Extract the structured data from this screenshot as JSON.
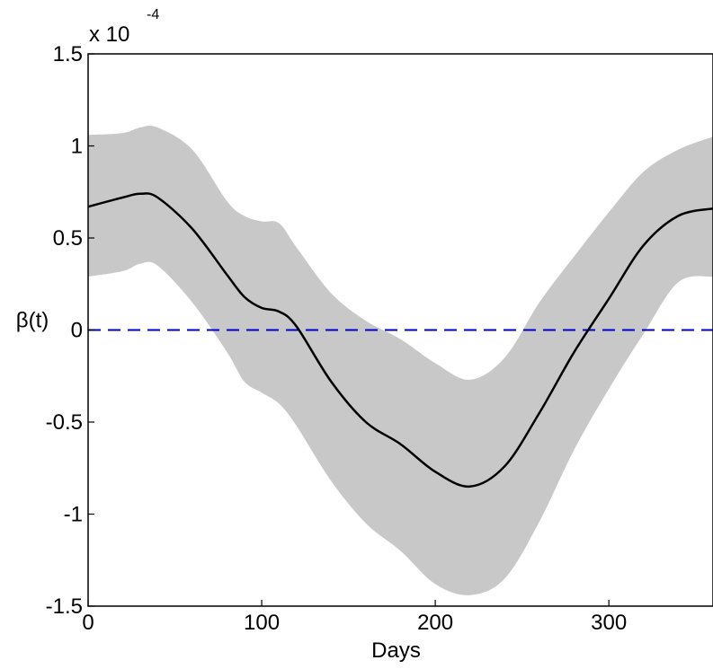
{
  "chart_data": {
    "type": "area",
    "title": "",
    "xlabel": "Days",
    "ylabel": "β(t)",
    "y_scale_note": {
      "prefix": "x 10",
      "exponent": "-4"
    },
    "xlim": [
      0,
      360
    ],
    "ylim": [
      -1.5,
      1.5
    ],
    "x_ticks": [
      0,
      100,
      200,
      300
    ],
    "x_tick_labels": [
      "0",
      "100",
      "200",
      "300"
    ],
    "y_ticks": [
      -1.5,
      -1,
      -0.5,
      0,
      0.5,
      1,
      1.5
    ],
    "y_tick_labels": [
      "-1.5",
      "-1",
      "-0.5",
      "0",
      "0.5",
      "1",
      "1.5"
    ],
    "grid": false,
    "colors": {
      "band": "#c8c8c8",
      "line": "#000000",
      "zero_line": "#0000cc"
    },
    "x": [
      0,
      20,
      30,
      40,
      60,
      80,
      90,
      100,
      110,
      120,
      140,
      160,
      180,
      200,
      220,
      240,
      260,
      280,
      300,
      320,
      340,
      360
    ],
    "series": [
      {
        "role": "estimate",
        "values": [
          0.67,
          0.72,
          0.74,
          0.72,
          0.55,
          0.3,
          0.18,
          0.12,
          0.1,
          0.02,
          -0.28,
          -0.5,
          -0.62,
          -0.77,
          -0.85,
          -0.74,
          -0.45,
          -0.12,
          0.17,
          0.46,
          0.62,
          0.66
        ]
      },
      {
        "role": "upper",
        "values": [
          1.06,
          1.07,
          1.1,
          1.1,
          0.98,
          0.7,
          0.62,
          0.59,
          0.58,
          0.45,
          0.2,
          0.05,
          -0.05,
          -0.18,
          -0.27,
          -0.15,
          0.15,
          0.4,
          0.64,
          0.86,
          0.98,
          1.05
        ]
      },
      {
        "role": "lower",
        "values": [
          0.29,
          0.32,
          0.36,
          0.35,
          0.15,
          -0.12,
          -0.28,
          -0.34,
          -0.4,
          -0.52,
          -0.82,
          -1.05,
          -1.2,
          -1.38,
          -1.44,
          -1.35,
          -1.04,
          -0.65,
          -0.32,
          -0.02,
          0.26,
          0.29
        ]
      },
      {
        "role": "reference",
        "values": [
          0,
          0
        ],
        "x": [
          0,
          360
        ]
      }
    ]
  }
}
